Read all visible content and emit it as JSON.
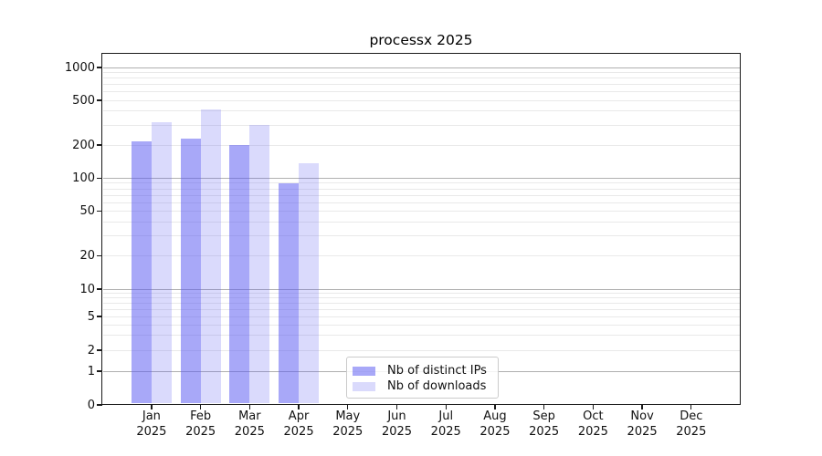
{
  "chart_data": {
    "type": "bar",
    "title": "processx 2025",
    "categories": [
      "Jan",
      "Feb",
      "Mar",
      "Apr",
      "May",
      "Jun",
      "Jul",
      "Aug",
      "Sep",
      "Oct",
      "Nov",
      "Dec"
    ],
    "category_year": "2025",
    "series": [
      {
        "name": "Nb of distinct IPs",
        "color": "rgba(88,88,242,0.52)",
        "values": [
          215,
          230,
          201,
          90,
          null,
          null,
          null,
          null,
          null,
          null,
          null,
          null
        ]
      },
      {
        "name": "Nb of downloads",
        "color": "rgba(88,88,242,0.22)",
        "values": [
          322,
          414,
          304,
          137,
          null,
          null,
          null,
          null,
          null,
          null,
          null,
          null
        ]
      }
    ],
    "y_ticks": [
      0,
      1,
      2,
      5,
      10,
      20,
      50,
      100,
      200,
      500,
      1000
    ],
    "y_scale": "pseudo-log with 1-2-5 tick sequence, 0 baseline",
    "ylim": [
      0,
      1200
    ],
    "xlabel": "",
    "ylabel": "",
    "grid": "horizontal only; darker lines at decades 1,10,100,1000; faint minor lines at 2-9 per decade",
    "legend_position": "lower center"
  },
  "colors": {
    "axis": "#1a1a1a",
    "grid_major": "#b0b0b0",
    "grid_minor": "#e9e9e9",
    "legend_border": "#cbcbcb"
  }
}
